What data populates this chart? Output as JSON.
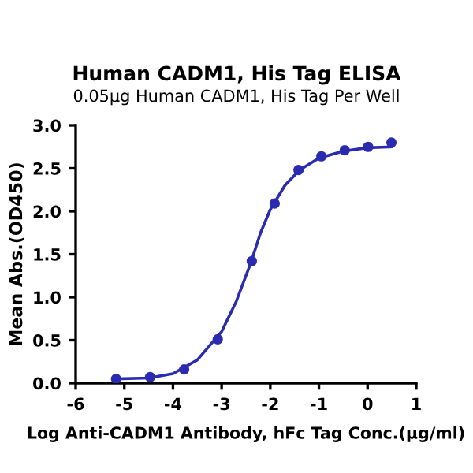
{
  "chart_data": {
    "type": "scatter",
    "title": "Human CADM1, His Tag ELISA",
    "subtitle": "0.05μg Human CADM1, His Tag Per Well",
    "xlabel": "Log Anti-CADM1 Antibody, hFc Tag Conc.(μg/ml)",
    "ylabel": "Mean Abs.(OD450)",
    "series": [
      {
        "color": "#2b2bb0",
        "marker": "circle",
        "x": [
          -5.17,
          -4.47,
          -3.77,
          -3.08,
          -2.38,
          -1.91,
          -1.42,
          -0.95,
          -0.47,
          0.01,
          0.49
        ],
        "values": [
          0.05,
          0.07,
          0.16,
          0.51,
          1.42,
          2.09,
          2.48,
          2.64,
          2.71,
          2.75,
          2.8
        ]
      },
      {
        "type": "line",
        "color": "#2b2bb0",
        "marker": "none",
        "x": [
          -5.17,
          -4.5,
          -4.0,
          -3.5,
          -3.0,
          -2.7,
          -2.4,
          -2.2,
          -2.0,
          -1.7,
          -1.4,
          -1.0,
          -0.5,
          0.0,
          0.5
        ],
        "values": [
          0.05,
          0.06,
          0.11,
          0.27,
          0.6,
          0.95,
          1.4,
          1.75,
          2.02,
          2.3,
          2.48,
          2.62,
          2.7,
          2.74,
          2.75
        ]
      }
    ],
    "xlim": [
      -6,
      1
    ],
    "xticks": [
      -6,
      -5,
      -4,
      -3,
      -2,
      -1,
      0,
      1
    ],
    "ylim": [
      0,
      3.0
    ],
    "yticks": [
      {
        "value": 0,
        "label": "0.0"
      },
      0.5,
      {
        "value": 1,
        "label": "1.0"
      },
      1.5,
      {
        "value": 2,
        "label": "2.0"
      },
      2.5,
      {
        "value": 3,
        "label": "3.0"
      }
    ],
    "grid": false,
    "legend": false
  }
}
